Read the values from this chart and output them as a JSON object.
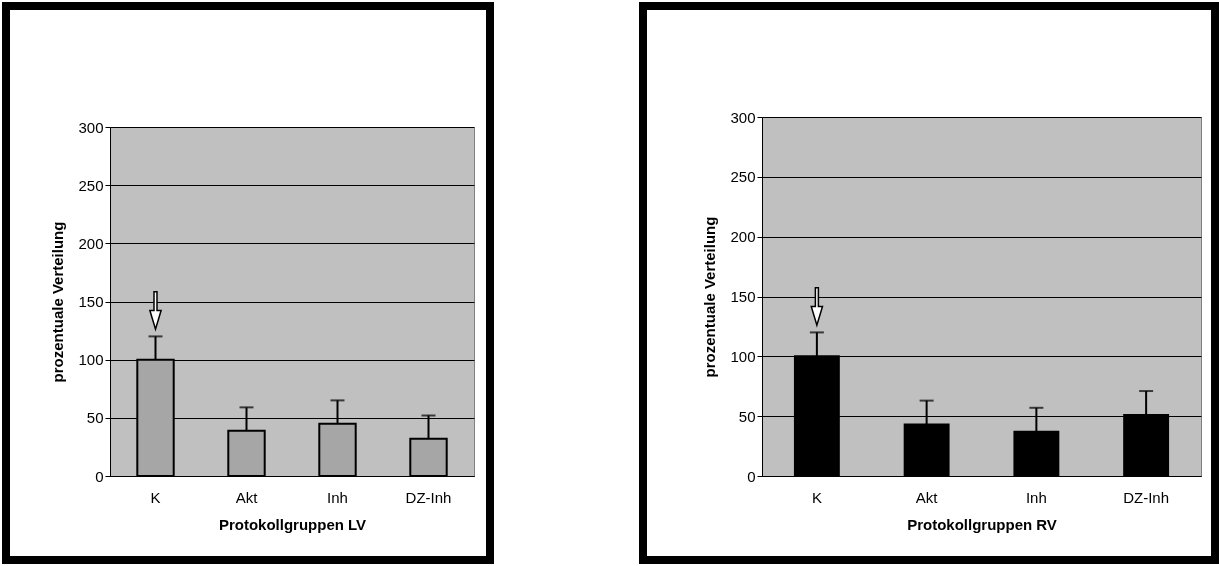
{
  "chart_data": [
    {
      "type": "bar",
      "xlabel": "Protokollgruppen LV",
      "ylabel": "prozentuale Verteilung",
      "categories": [
        "K",
        "Akt",
        "Inh",
        "DZ-Inh"
      ],
      "values": [
        100,
        39,
        45,
        32
      ],
      "errors": [
        [
          100,
          120
        ],
        [
          39,
          59
        ],
        [
          45,
          65
        ],
        [
          32,
          52
        ]
      ],
      "color": "#a6a6a6",
      "ylim": [
        0,
        300
      ],
      "yticks": [
        0,
        50,
        100,
        150,
        200,
        250,
        300
      ],
      "grid": "y"
    },
    {
      "type": "bar",
      "xlabel": "Protokollgruppen RV",
      "ylabel": "prozentuale Verteilung",
      "categories": [
        "K",
        "Akt",
        "Inh",
        "DZ-Inh"
      ],
      "values": [
        100,
        43,
        37,
        51
      ],
      "errors": [
        [
          100,
          120
        ],
        [
          43,
          63
        ],
        [
          37,
          57
        ],
        [
          51,
          71
        ]
      ],
      "color": "#000000",
      "ylim": [
        0,
        300
      ],
      "yticks": [
        0,
        50,
        100,
        150,
        200,
        250,
        300
      ],
      "grid": "y"
    }
  ]
}
